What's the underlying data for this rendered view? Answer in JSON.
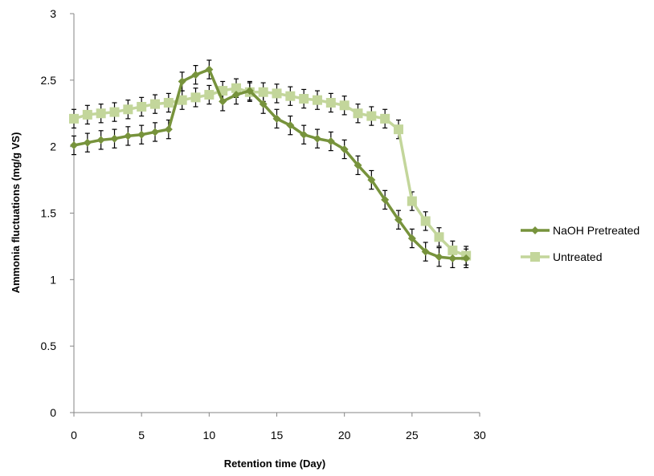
{
  "chart_data": {
    "type": "line",
    "title": "",
    "xlabel": "Retention time (Day)",
    "ylabel": "Ammonia fluctuations (mg/g VS)",
    "xlim": [
      0,
      30
    ],
    "ylim": [
      0,
      3
    ],
    "x_ticks": [
      0,
      5,
      10,
      15,
      20,
      25,
      30
    ],
    "y_ticks": [
      0,
      0.5,
      1,
      1.5,
      2,
      2.5,
      3
    ],
    "x_tick_labels": [
      "0",
      "5",
      "10",
      "15",
      "20",
      "25",
      "30"
    ],
    "y_tick_labels": [
      "0",
      "0.5",
      "1",
      "1.5",
      "2",
      "2.5",
      "3"
    ],
    "grid": false,
    "legend_position": "right",
    "x": [
      0,
      1,
      2,
      3,
      4,
      5,
      6,
      7,
      8,
      9,
      10,
      11,
      12,
      13,
      14,
      15,
      16,
      17,
      18,
      19,
      20,
      21,
      22,
      23,
      24,
      25,
      26,
      27,
      28,
      29
    ],
    "series": [
      {
        "name": "NaOH Pretreated",
        "marker": "diamond",
        "color": "#77933c",
        "values": [
          2.01,
          2.03,
          2.05,
          2.06,
          2.08,
          2.09,
          2.11,
          2.13,
          2.49,
          2.54,
          2.58,
          2.34,
          2.39,
          2.42,
          2.32,
          2.21,
          2.16,
          2.09,
          2.06,
          2.04,
          1.98,
          1.86,
          1.75,
          1.6,
          1.45,
          1.31,
          1.21,
          1.17,
          1.16,
          1.16
        ],
        "error": 0.07
      },
      {
        "name": "Untreated",
        "marker": "square",
        "color": "#c3d69b",
        "values": [
          2.21,
          2.24,
          2.25,
          2.26,
          2.28,
          2.3,
          2.32,
          2.33,
          2.35,
          2.37,
          2.39,
          2.42,
          2.44,
          2.41,
          2.41,
          2.4,
          2.38,
          2.36,
          2.35,
          2.33,
          2.31,
          2.25,
          2.23,
          2.21,
          2.13,
          1.59,
          1.44,
          1.32,
          1.22,
          1.18
        ],
        "error": 0.07
      }
    ]
  }
}
